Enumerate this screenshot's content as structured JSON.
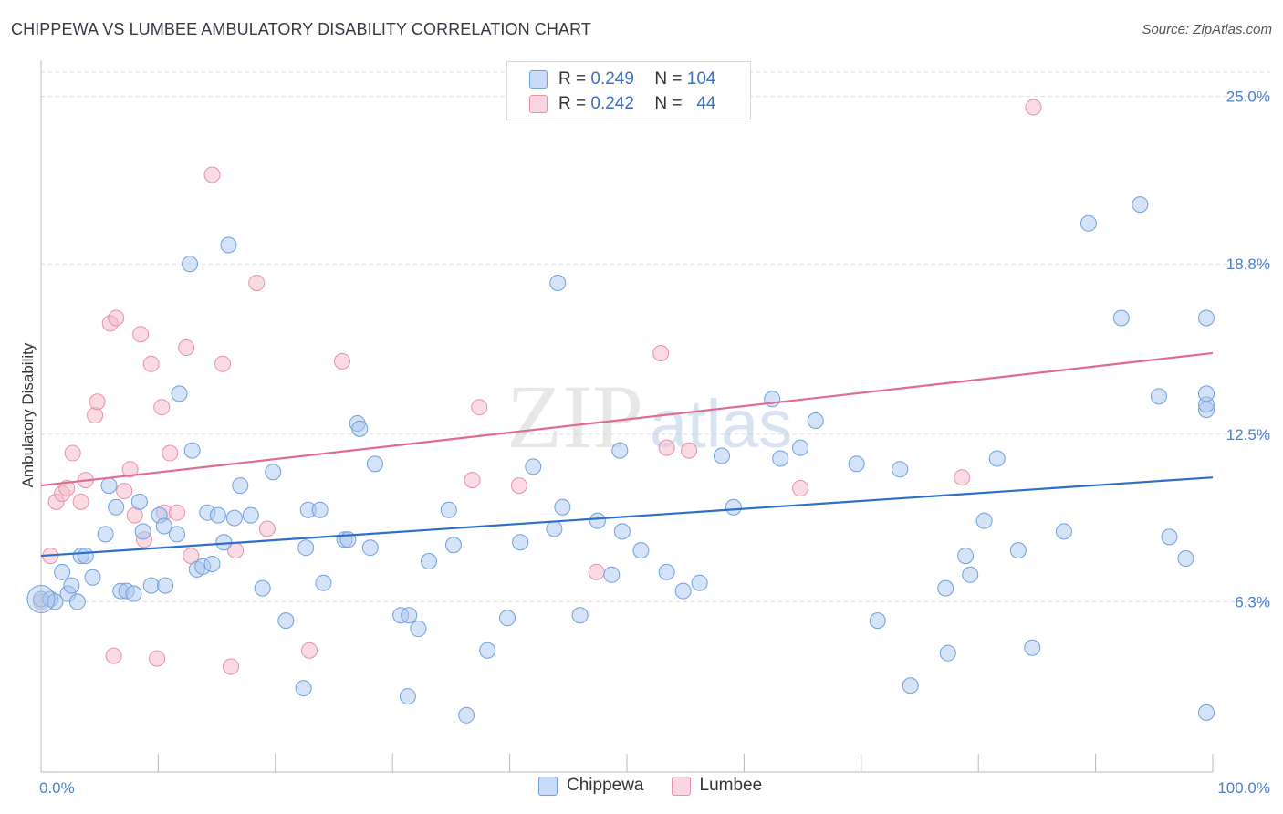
{
  "header": {
    "title": "CHIPPEWA VS LUMBEE AMBULATORY DISABILITY CORRELATION CHART",
    "source": "Source: ZipAtlas.com"
  },
  "watermark": {
    "text_zip": "ZIP",
    "text_atlas": "atlas"
  },
  "legend": {
    "rows": [
      {
        "r_label": "R =",
        "r_value": "0.249",
        "n_label": "N =",
        "n_value": "104",
        "color": "#a9c8f0"
      },
      {
        "r_label": "R =",
        "r_value": "0.242",
        "n_label": "N =",
        "n_value": "44",
        "color": "#f5b8c9"
      }
    ]
  },
  "bottom_legend": {
    "chippewa": "Chippewa",
    "lumbee": "Lumbee"
  },
  "colors": {
    "chippewa_fill": "#a9c8f0",
    "chippewa_stroke": "#6f9fdc",
    "chippewa_line": "#2d6fc8",
    "lumbee_fill": "#f5b8c9",
    "lumbee_stroke": "#e98fa9",
    "lumbee_line": "#e06a92",
    "axis_label": "#4a7fd0",
    "grid": "#dcdcdc"
  },
  "chart_data": {
    "type": "scatter",
    "title": "CHIPPEWA VS LUMBEE AMBULATORY DISABILITY CORRELATION CHART",
    "xlabel": "",
    "ylabel": "Ambulatory Disability",
    "x_tick_labels": [
      "0.0%",
      "100.0%"
    ],
    "y_tick_labels": [
      "6.3%",
      "12.5%",
      "18.8%",
      "25.0%"
    ],
    "y_ticks": [
      6.3,
      12.5,
      18.8,
      25.0
    ],
    "xlim": [
      0,
      100
    ],
    "ylim": [
      0,
      26
    ],
    "grid": "horizontal dashed",
    "legend_position": "top-center",
    "series": [
      {
        "name": "Chippewa",
        "r": 0.249,
        "n": 104,
        "trend": [
          [
            0,
            8.0
          ],
          [
            100,
            10.9
          ]
        ],
        "points": [
          [
            0.0,
            6.4
          ],
          [
            0.8,
            6.4
          ],
          [
            1.2,
            6.3
          ],
          [
            1.8,
            7.4
          ],
          [
            2.3,
            6.6
          ],
          [
            2.6,
            6.9
          ],
          [
            3.1,
            6.3
          ],
          [
            3.4,
            8.0
          ],
          [
            3.8,
            8.0
          ],
          [
            4.4,
            7.2
          ],
          [
            5.5,
            8.8
          ],
          [
            5.8,
            10.6
          ],
          [
            6.4,
            9.8
          ],
          [
            6.8,
            6.7
          ],
          [
            7.3,
            6.7
          ],
          [
            7.9,
            6.6
          ],
          [
            8.4,
            10.0
          ],
          [
            8.7,
            8.9
          ],
          [
            9.4,
            6.9
          ],
          [
            10.1,
            9.5
          ],
          [
            10.5,
            9.1
          ],
          [
            10.6,
            6.9
          ],
          [
            11.6,
            8.8
          ],
          [
            11.8,
            14.0
          ],
          [
            12.7,
            18.8
          ],
          [
            12.9,
            11.9
          ],
          [
            13.3,
            7.5
          ],
          [
            13.8,
            7.6
          ],
          [
            14.2,
            9.6
          ],
          [
            14.6,
            7.7
          ],
          [
            15.1,
            9.5
          ],
          [
            15.6,
            8.5
          ],
          [
            16.0,
            19.5
          ],
          [
            16.5,
            9.4
          ],
          [
            17.0,
            10.6
          ],
          [
            17.9,
            9.5
          ],
          [
            18.9,
            6.8
          ],
          [
            19.8,
            11.1
          ],
          [
            20.9,
            5.6
          ],
          [
            22.4,
            3.1
          ],
          [
            22.6,
            8.3
          ],
          [
            22.8,
            9.7
          ],
          [
            23.8,
            9.7
          ],
          [
            24.1,
            7.0
          ],
          [
            25.9,
            8.6
          ],
          [
            26.2,
            8.6
          ],
          [
            27.0,
            12.9
          ],
          [
            27.2,
            12.7
          ],
          [
            28.1,
            8.3
          ],
          [
            28.5,
            11.4
          ],
          [
            30.7,
            5.8
          ],
          [
            31.3,
            2.8
          ],
          [
            31.4,
            5.8
          ],
          [
            32.2,
            5.3
          ],
          [
            33.1,
            7.8
          ],
          [
            34.8,
            9.7
          ],
          [
            35.2,
            8.4
          ],
          [
            36.3,
            2.1
          ],
          [
            38.1,
            4.5
          ],
          [
            39.8,
            5.7
          ],
          [
            40.9,
            8.5
          ],
          [
            42.0,
            11.3
          ],
          [
            43.8,
            9.0
          ],
          [
            44.1,
            18.1
          ],
          [
            44.5,
            9.8
          ],
          [
            46.0,
            5.8
          ],
          [
            47.5,
            9.3
          ],
          [
            48.7,
            7.3
          ],
          [
            49.4,
            11.9
          ],
          [
            49.6,
            8.9
          ],
          [
            51.2,
            8.2
          ],
          [
            53.4,
            7.4
          ],
          [
            54.8,
            6.7
          ],
          [
            56.2,
            7.0
          ],
          [
            58.1,
            11.7
          ],
          [
            59.1,
            9.8
          ],
          [
            62.4,
            13.8
          ],
          [
            63.1,
            11.6
          ],
          [
            64.8,
            12.0
          ],
          [
            66.1,
            13.0
          ],
          [
            69.6,
            11.4
          ],
          [
            71.4,
            5.6
          ],
          [
            73.3,
            11.2
          ],
          [
            74.2,
            3.2
          ],
          [
            77.2,
            6.8
          ],
          [
            77.4,
            4.4
          ],
          [
            78.9,
            8.0
          ],
          [
            79.3,
            7.3
          ],
          [
            80.5,
            9.3
          ],
          [
            81.6,
            11.6
          ],
          [
            83.4,
            8.2
          ],
          [
            84.6,
            4.6
          ],
          [
            87.3,
            8.9
          ],
          [
            89.4,
            20.3
          ],
          [
            92.2,
            16.8
          ],
          [
            93.8,
            21.0
          ],
          [
            95.4,
            13.9
          ],
          [
            96.3,
            8.7
          ],
          [
            97.7,
            7.9
          ],
          [
            100.3,
            13.4
          ],
          [
            102.6,
            13.6
          ],
          [
            103.5,
            14.0
          ],
          [
            101.7,
            16.8
          ],
          [
            102.0,
            2.2
          ]
        ]
      },
      {
        "name": "Lumbee",
        "r": 0.242,
        "n": 44,
        "trend": [
          [
            0,
            10.6
          ],
          [
            100,
            15.5
          ]
        ],
        "points": [
          [
            0.0,
            6.3
          ],
          [
            0.8,
            8.0
          ],
          [
            1.3,
            10.0
          ],
          [
            1.8,
            10.3
          ],
          [
            2.2,
            10.5
          ],
          [
            2.7,
            11.8
          ],
          [
            3.4,
            10.0
          ],
          [
            3.8,
            10.8
          ],
          [
            4.6,
            13.2
          ],
          [
            4.8,
            13.7
          ],
          [
            5.9,
            16.6
          ],
          [
            6.2,
            4.3
          ],
          [
            6.4,
            16.8
          ],
          [
            7.1,
            10.4
          ],
          [
            7.6,
            11.2
          ],
          [
            8.0,
            9.5
          ],
          [
            8.5,
            16.2
          ],
          [
            8.8,
            8.6
          ],
          [
            9.4,
            15.1
          ],
          [
            9.9,
            4.2
          ],
          [
            10.3,
            13.5
          ],
          [
            10.5,
            9.6
          ],
          [
            11.0,
            11.8
          ],
          [
            11.6,
            9.6
          ],
          [
            12.4,
            15.7
          ],
          [
            12.8,
            8.0
          ],
          [
            14.6,
            22.1
          ],
          [
            15.5,
            15.1
          ],
          [
            16.2,
            3.9
          ],
          [
            16.6,
            8.2
          ],
          [
            18.4,
            18.1
          ],
          [
            19.3,
            9.0
          ],
          [
            22.9,
            4.5
          ],
          [
            25.7,
            15.2
          ],
          [
            36.8,
            10.8
          ],
          [
            37.4,
            13.5
          ],
          [
            40.8,
            10.6
          ],
          [
            47.4,
            7.4
          ],
          [
            52.9,
            15.5
          ],
          [
            53.4,
            12.0
          ],
          [
            55.3,
            11.9
          ],
          [
            64.8,
            10.5
          ],
          [
            78.6,
            10.9
          ],
          [
            84.7,
            24.6
          ]
        ]
      }
    ]
  }
}
